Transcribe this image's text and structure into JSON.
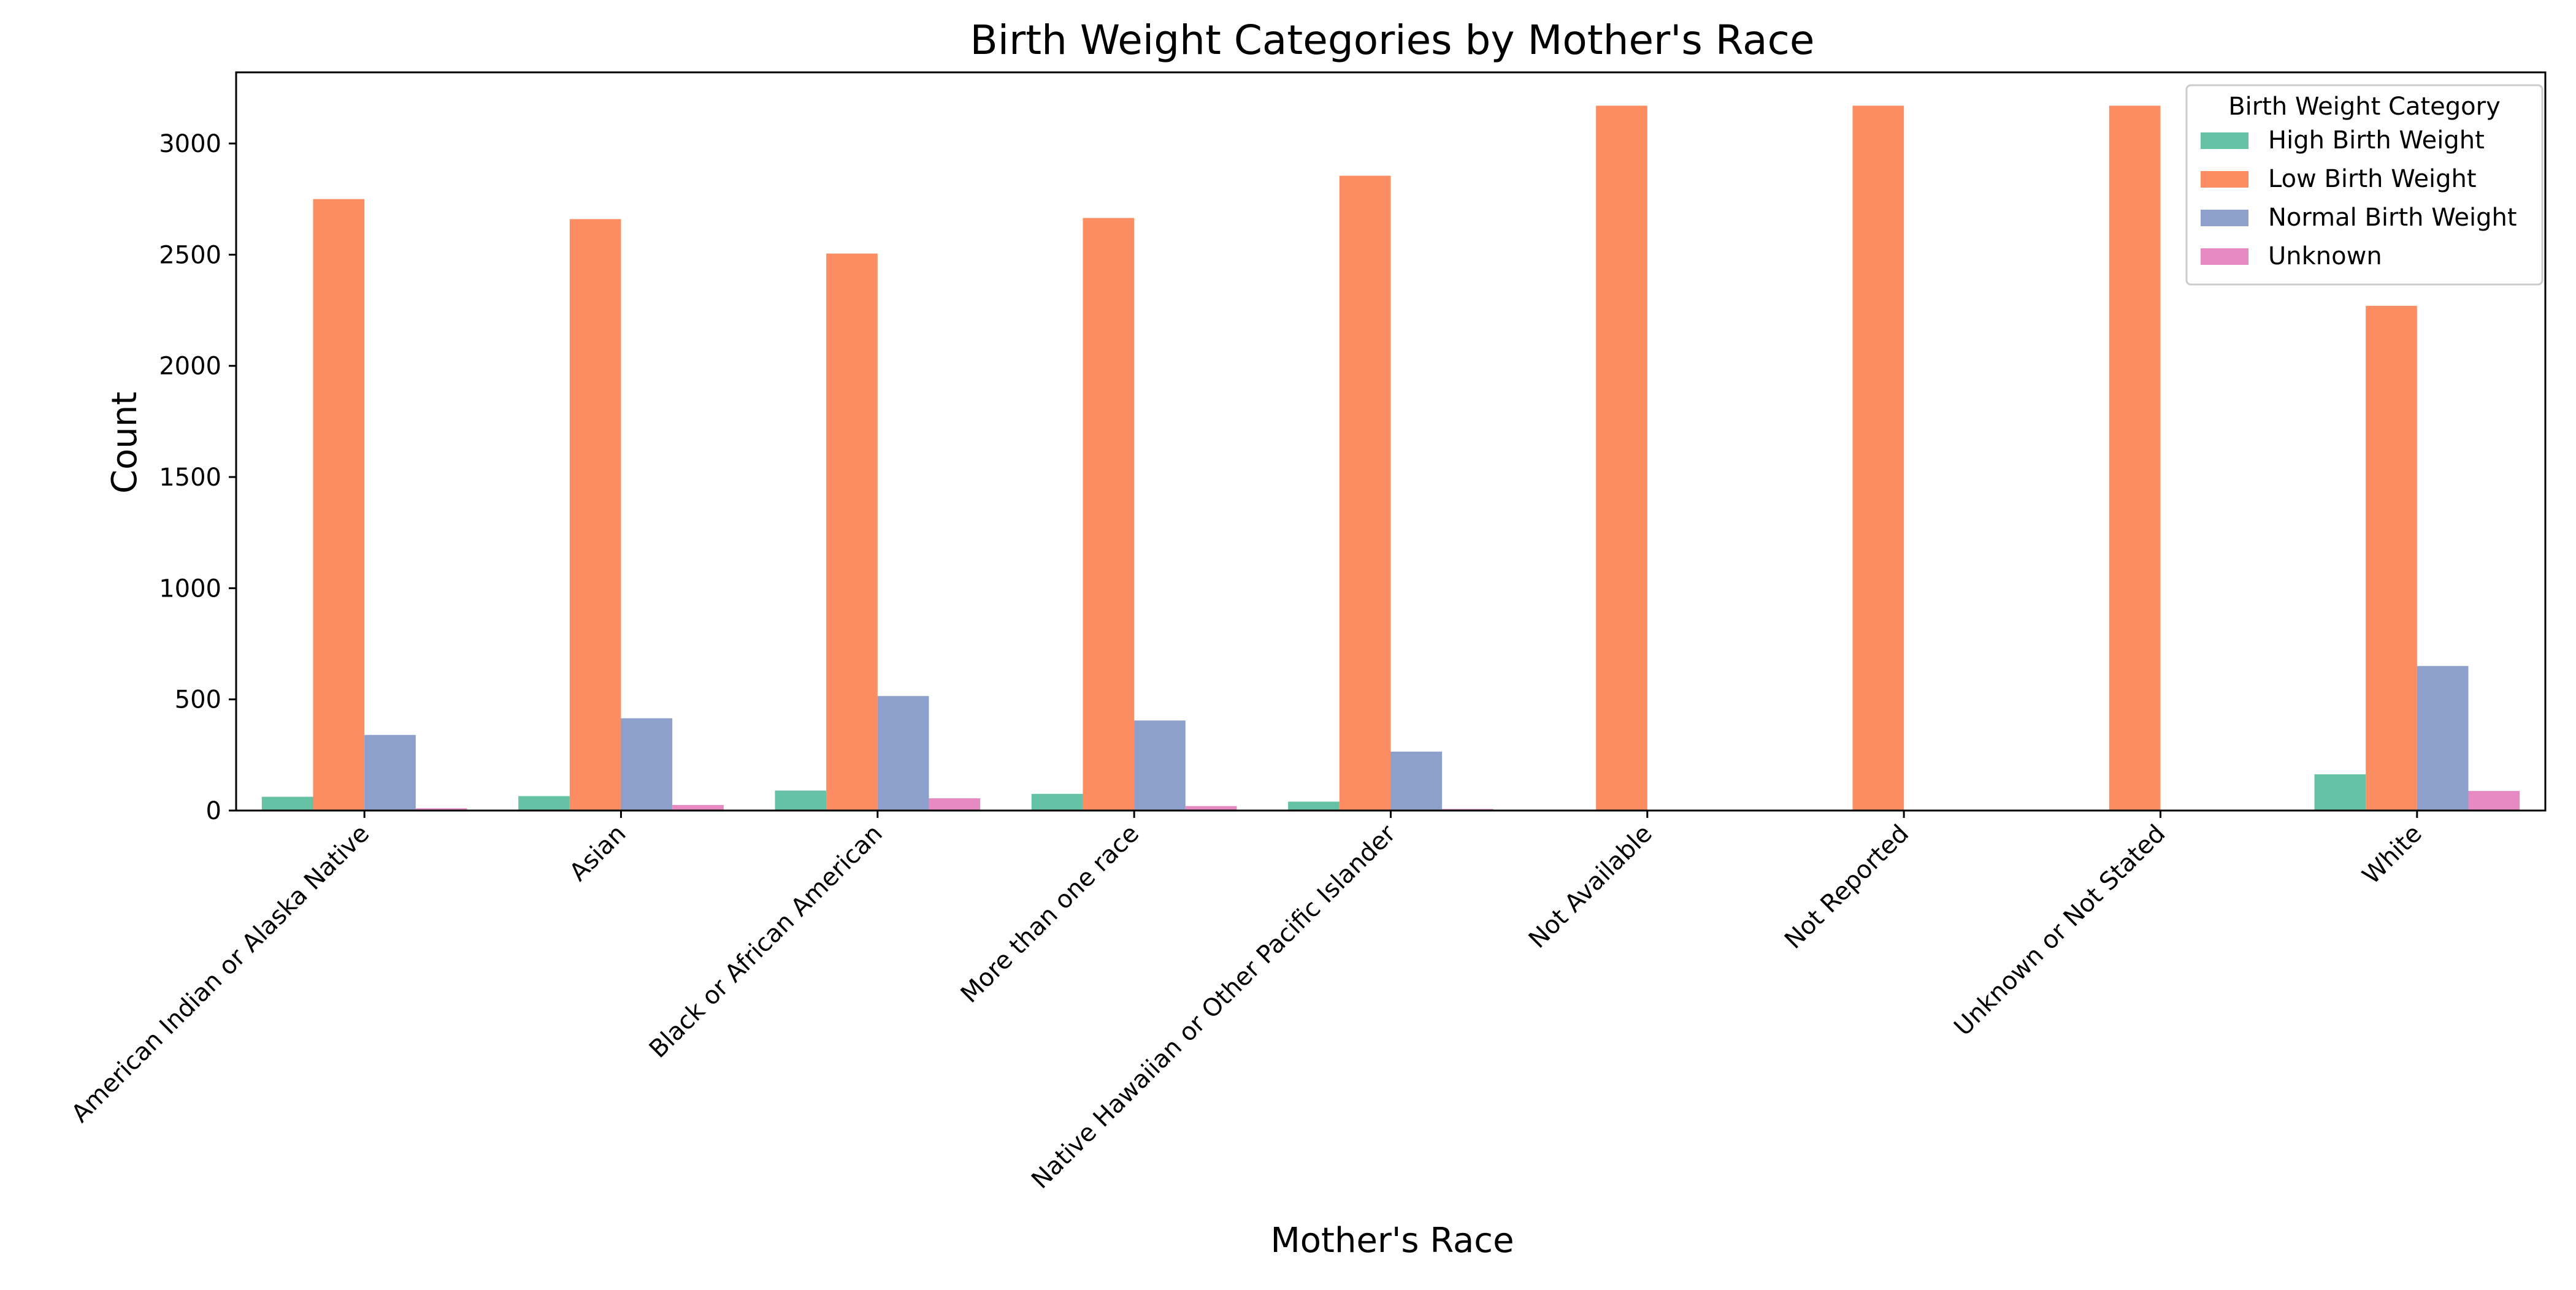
{
  "chart_data": {
    "type": "bar",
    "title": "Birth Weight Categories by Mother's Race",
    "xlabel": "Mother's Race",
    "ylabel": "Count",
    "ylim": [
      0,
      3320
    ],
    "yticks": [
      0,
      500,
      1000,
      1500,
      2000,
      2500,
      3000
    ],
    "grid": false,
    "legend": {
      "title": "Birth Weight Category",
      "placement": "top-right"
    },
    "categories": [
      "American Indian or Alaska Native",
      "Asian",
      "Black or African American",
      "More than one race",
      "Native Hawaiian or Other Pacific Islander",
      "Not Available",
      "Not Reported",
      "Unknown or Not Stated",
      "White"
    ],
    "series": [
      {
        "name": "High Birth Weight",
        "color": "#66c2a5",
        "values": [
          62,
          65,
          90,
          75,
          40,
          0,
          0,
          0,
          163
        ]
      },
      {
        "name": "Low Birth Weight",
        "color": "#fc8d62",
        "values": [
          2750,
          2660,
          2505,
          2665,
          2855,
          3170,
          3170,
          3170,
          2270
        ]
      },
      {
        "name": "Normal Birth Weight",
        "color": "#8da0cb",
        "values": [
          340,
          415,
          515,
          405,
          265,
          0,
          0,
          0,
          650
        ]
      },
      {
        "name": "Unknown",
        "color": "#e78ac3",
        "values": [
          10,
          25,
          55,
          20,
          7,
          0,
          0,
          0,
          88
        ]
      }
    ]
  }
}
